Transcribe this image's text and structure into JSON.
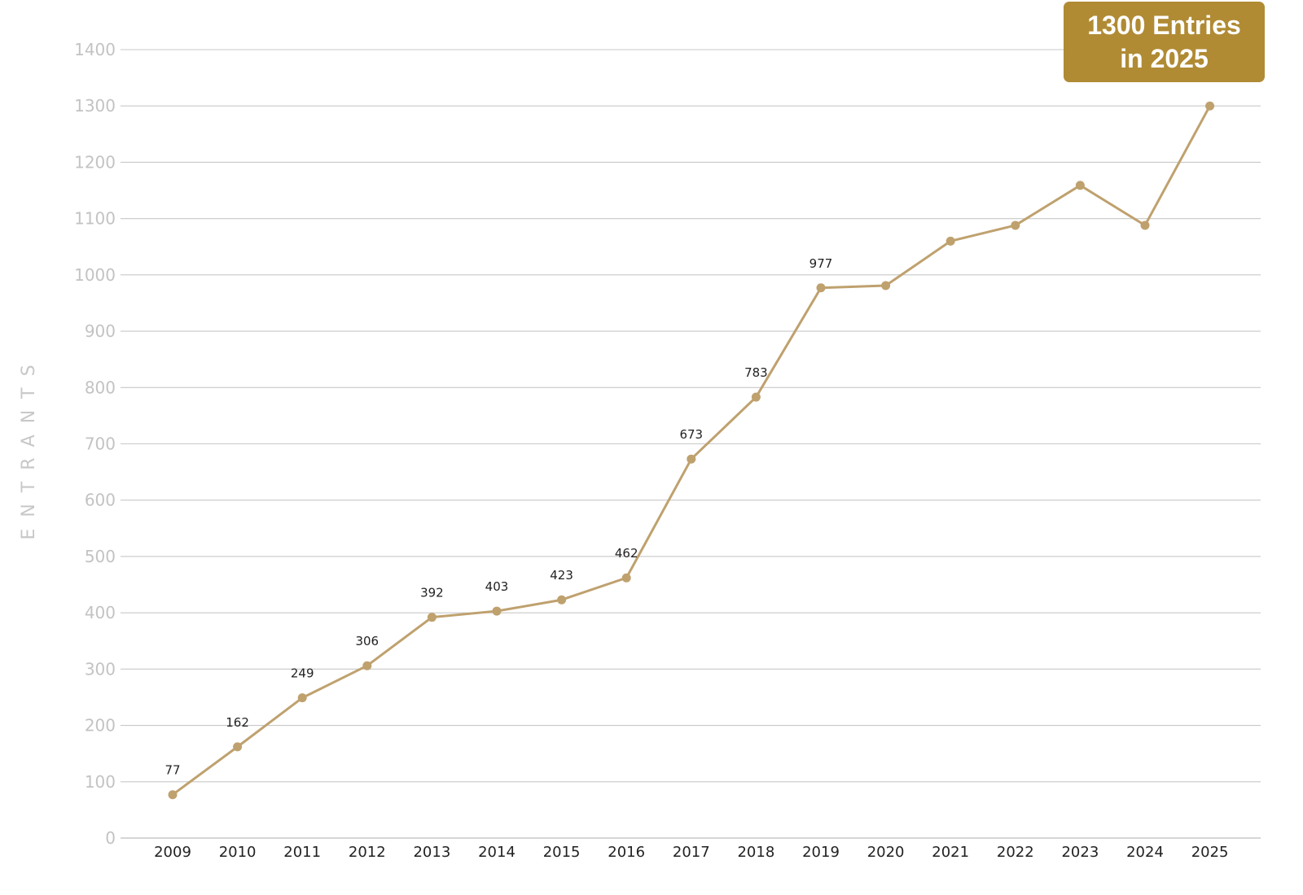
{
  "chart_data": {
    "type": "line",
    "title": "",
    "xlabel": "",
    "ylabel": "ENTRANTS",
    "ylim": [
      0,
      1400
    ],
    "yticks": [
      0,
      100,
      200,
      300,
      400,
      500,
      600,
      700,
      800,
      900,
      1000,
      1100,
      1200,
      1300,
      1400
    ],
    "grid": true,
    "legend": "none",
    "categories": [
      "2009",
      "2010",
      "2011",
      "2012",
      "2013",
      "2014",
      "2015",
      "2016",
      "2017",
      "2018",
      "2019",
      "2020",
      "2021",
      "2022",
      "2023",
      "2024",
      "2025"
    ],
    "series": [
      {
        "values": [
          77,
          162,
          249,
          306,
          392,
          403,
          423,
          462,
          673,
          783,
          977,
          981,
          1060,
          1088,
          1159,
          1088,
          1300
        ],
        "data_labels": [
          "77",
          "162",
          "249",
          "306",
          "392",
          "403",
          "423",
          "462",
          "673",
          "783",
          "977",
          "",
          "",
          "",
          "",
          "",
          ""
        ]
      }
    ],
    "annotation": {
      "line1": "1300 Entries",
      "line2": "in 2025"
    },
    "colors": {
      "line": "#bfa16e",
      "marker": "#bfa16e",
      "callout_bg": "#b08b34",
      "grid": "#c8c8c8",
      "ytick_text": "#c3c3c3",
      "xtick_text": "#222222",
      "ylabel_text": "#c8c8c8"
    }
  }
}
